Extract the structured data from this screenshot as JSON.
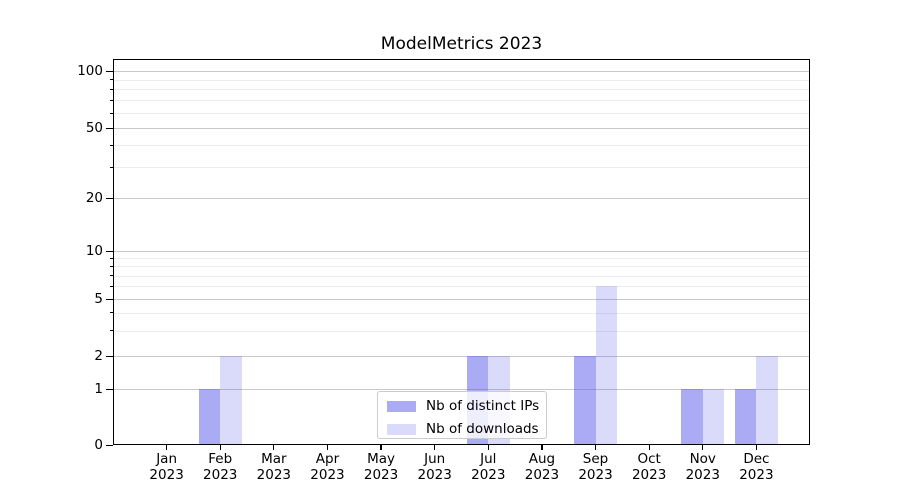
{
  "chart_data": {
    "type": "bar",
    "title": "ModelMetrics 2023",
    "categories": [
      "Jan 2023",
      "Feb 2023",
      "Mar 2023",
      "Apr 2023",
      "May 2023",
      "Jun 2023",
      "Jul 2023",
      "Aug 2023",
      "Sep 2023",
      "Oct 2023",
      "Nov 2023",
      "Dec 2023"
    ],
    "series": [
      {
        "name": "Nb of distinct IPs",
        "color": "#5555eb",
        "alpha": 0.5,
        "values": [
          0,
          1,
          0,
          0,
          0,
          0,
          2,
          0,
          2,
          0,
          1,
          1
        ]
      },
      {
        "name": "Nb of downloads",
        "color": "#5555eb",
        "alpha": 0.215,
        "values": [
          0,
          2,
          0,
          0,
          0,
          0,
          2,
          0,
          6,
          0,
          1,
          2
        ]
      }
    ],
    "xlabel": "",
    "ylabel": "",
    "y_scale": "symlog",
    "y_ticks": [
      0,
      1,
      2,
      5,
      10,
      20,
      50,
      100
    ],
    "y_minor_ticks": [
      3,
      4,
      6,
      7,
      8,
      9,
      30,
      40,
      60,
      70,
      80,
      90
    ],
    "ylim": [
      0,
      120
    ],
    "grid": "horizontal-only",
    "legend": {
      "position": "lower center",
      "entries": [
        "Nb of distinct IPs",
        "Nb of downloads"
      ]
    }
  },
  "colors": {
    "grid_major": "#c9c9c9",
    "grid_minor": "#ececec",
    "axis": "#000000",
    "background": "#ffffff",
    "bar_distinct_ips_rendered": "#aaaaf5",
    "bar_downloads_rendered": "#dadaf9"
  }
}
